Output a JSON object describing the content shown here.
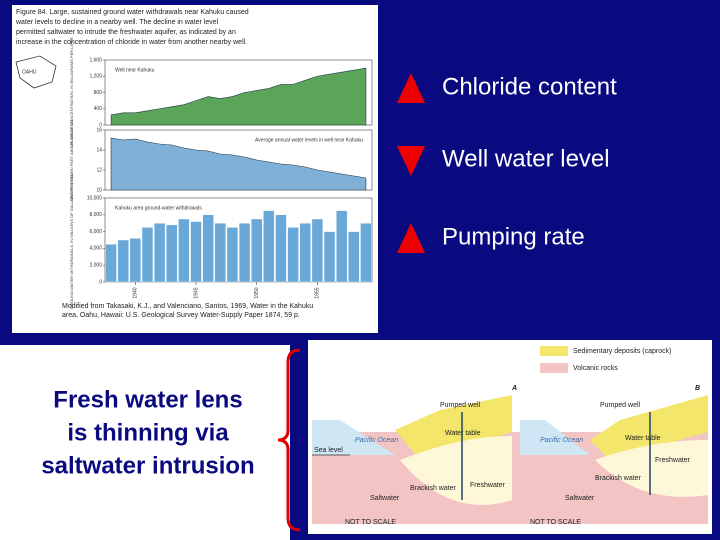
{
  "figure": {
    "caption": [
      "Figure 84. Large, sustained ground water withdrawals near Kahuku caused",
      "water levels to decline in a nearby well. The decline in water level",
      "permitted saltwater to intrude the freshwater aquifer, as indicated by an",
      "increase in the concentration of chloride in water from another nearby well."
    ],
    "map_label": "OAHU",
    "years": [
      1938,
      1939,
      1940,
      1941,
      1942,
      1943,
      1944,
      1945,
      1946,
      1947,
      1948,
      1949,
      1950,
      1951,
      1952,
      1953,
      1954,
      1955,
      1956,
      1957,
      1958,
      1959
    ],
    "xlim": [
      1937.5,
      1959.5
    ],
    "xticks": [
      1940,
      1945,
      1950,
      1955
    ],
    "panels": [
      {
        "type": "area",
        "color": "#5aa55a",
        "annotation": "Well near Kahuku",
        "ylabel": "CHLORIDE CONCENTRATION, IN MILLIGRAMS PER LITER",
        "ylim": [
          0,
          1600
        ],
        "yticks": [
          0,
          400,
          800,
          {
            "value": 1200,
            "label": "1,200"
          },
          {
            "value": 1600,
            "label": "1,600"
          }
        ],
        "values": [
          250,
          300,
          300,
          350,
          400,
          450,
          500,
          600,
          700,
          650,
          700,
          800,
          850,
          900,
          1000,
          1000,
          1100,
          1200,
          1250,
          1300,
          1350,
          1400
        ]
      },
      {
        "type": "area",
        "color": "#7fb0d8",
        "annotation": "Average annual water levels in well near Kahuku",
        "ylabel": "WATER LEVEL, IN FEET ABOVE SEA LEVEL",
        "ylim": [
          10,
          16
        ],
        "yticks": [
          10,
          12,
          14,
          16
        ],
        "values": [
          15.2,
          15.0,
          15.1,
          14.8,
          14.6,
          14.5,
          14.2,
          14.0,
          13.9,
          13.6,
          13.5,
          13.3,
          13.0,
          12.8,
          12.6,
          12.5,
          12.3,
          12.0,
          11.8,
          11.6,
          11.4,
          11.2
        ]
      },
      {
        "type": "bar",
        "color": "#6aa8d8",
        "annotation": "Kahuku area ground-water withdrawals",
        "ylabel": "GROUND-WATER WITHDRAWALS, IN MILLIONS OF GALLONS PER YEAR",
        "ylim": [
          0,
          10000
        ],
        "yticks": [
          0,
          {
            "value": 2000,
            "label": "2,000"
          },
          {
            "value": 4000,
            "label": "4,000"
          },
          {
            "value": 6000,
            "label": "6,000"
          },
          {
            "value": 8000,
            "label": "8,000"
          },
          {
            "value": 10000,
            "label": "10,000"
          }
        ],
        "values": [
          4500,
          5000,
          5200,
          6500,
          7000,
          6800,
          7500,
          7200,
          8000,
          7000,
          6500,
          7000,
          7500,
          8500,
          8000,
          6500,
          7000,
          7500,
          6000,
          8500,
          6000,
          7000
        ]
      }
    ],
    "credit": [
      "Modified from Takasaki, K.J., and Valenciano, Santos, 1969, Water in the Kahuku",
      "area, Oahu, Hawaii: U.S. Geological Survey Water-Supply Paper 1874, 59 p."
    ]
  },
  "labels": [
    "Chloride content",
    "Well water level",
    "Pumping rate"
  ],
  "statement": [
    "Fresh water lens",
    "is thinning via",
    "saltwater intrusion"
  ],
  "diagram": {
    "legend": [
      "Sedimentary deposits (caprock)",
      "Volcanic rocks"
    ],
    "sections": [
      {
        "id": "A",
        "well": "Pumped well",
        "ocean": "Pacific Ocean",
        "table": "Water table",
        "brackish": "Brackish water",
        "fresh": "Freshwater",
        "salt": "Saltwater",
        "scale": "NOT TO SCALE"
      },
      {
        "id": "B",
        "well": "Pumped well",
        "ocean": "Pacific Ocean",
        "table": "Water table",
        "brackish": "Brackish water",
        "fresh": "Freshwater",
        "salt": "Saltwater",
        "scale": "NOT TO SCALE"
      }
    ],
    "sea_level": "Sea level"
  }
}
